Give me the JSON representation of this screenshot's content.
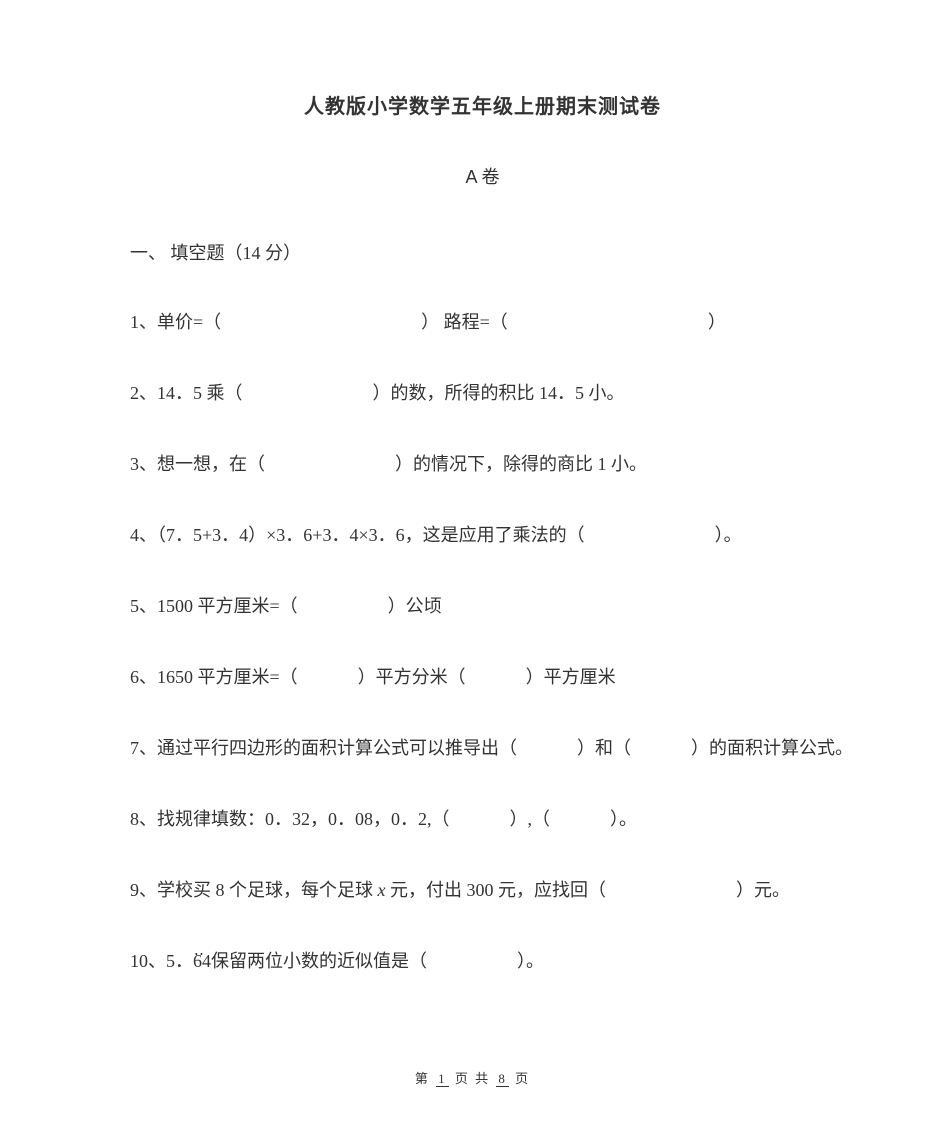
{
  "title": "人教版小学数学五年级上册期末测试卷",
  "subtitle": "A 卷",
  "section1": {
    "heading": "一、  填空题（14 分）"
  },
  "q1": {
    "prefix": "1、单价=（",
    "mid": "）          路程=（",
    "suffix": "）"
  },
  "q2": {
    "prefix": "2、14．5 乘（",
    "suffix": "）的数，所得的积比 14．5 小。"
  },
  "q3": {
    "prefix": "3、想一想，在（",
    "suffix": "）的情况下，除得的商比 1 小。"
  },
  "q4": {
    "prefix": "4、（7．5+3．4）×3．6+3．4×3．6，这是应用了乘法的（",
    "suffix": "）。"
  },
  "q5": {
    "prefix": "5、1500 平方厘米=（",
    "suffix": "）公顷"
  },
  "q6": {
    "prefix": "6、1650 平方厘米=（",
    "mid": "）平方分米（",
    "suffix": "）平方厘米"
  },
  "q7": {
    "prefix": "7、通过平行四边形的面积计算公式可以推导出（",
    "mid": "）和（",
    "suffix": "）的面积计算公式。"
  },
  "q8": {
    "prefix": "8、找规律填数：0．32，0．08，0．2,（",
    "mid": "）,（",
    "suffix": "）。"
  },
  "q9": {
    "p1": "9、学校买 8 个足球，每个足球 ",
    "xvar": "x",
    "p2": " 元，付出 300 元，应找回（",
    "p3": "）元。"
  },
  "q10": {
    "prefix": "10、5．",
    "rec": "64",
    "mid": "保留两位小数的近似值是（",
    "suffix": "）。"
  },
  "footer": {
    "a": "第",
    "page": "1",
    "b": "页 共",
    "total": "8",
    "c": "页"
  }
}
